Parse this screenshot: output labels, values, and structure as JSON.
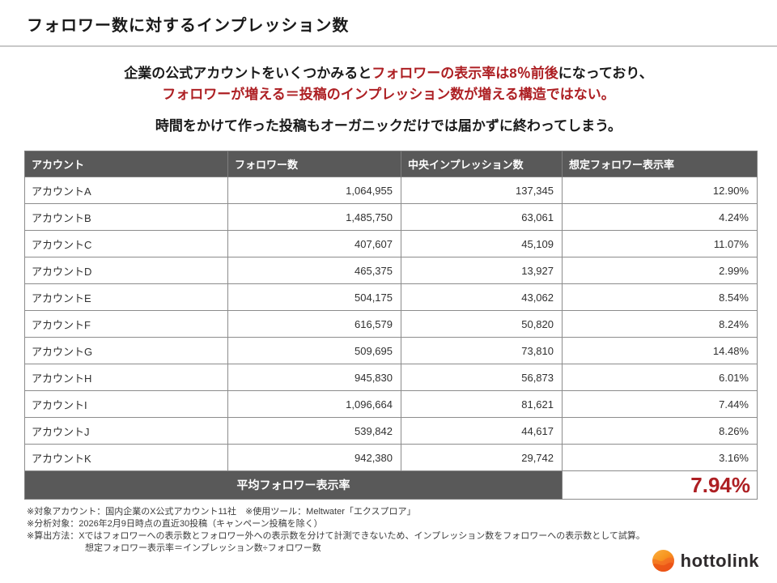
{
  "header": {
    "title": "フォロワー数に対するインプレッション数"
  },
  "lead": {
    "line1_black1": "企業の公式アカウントをいくつかみると",
    "line1_red": "フォロワーの表示率は8％前後",
    "line1_black2": "になっており、",
    "line2_red": "フォロワーが増える＝投稿のインプレッション数が増える構造ではない。",
    "line3": "時間をかけて作った投稿もオーガニックだけでは届かずに終わってしまう。"
  },
  "colors": {
    "accent_red": "#ad1f23",
    "header_gray": "#595959",
    "border_gray": "#8c8c8c"
  },
  "table": {
    "columns": [
      "アカウント",
      "フォロワー数",
      "中央インプレッション数",
      "想定フォロワー表示率"
    ],
    "rows": [
      {
        "account": "アカウントA",
        "followers": "1,064,955",
        "impressions": "137,345",
        "rate": "12.90%"
      },
      {
        "account": "アカウントB",
        "followers": "1,485,750",
        "impressions": "63,061",
        "rate": "4.24%"
      },
      {
        "account": "アカウントC",
        "followers": "407,607",
        "impressions": "45,109",
        "rate": "11.07%"
      },
      {
        "account": "アカウントD",
        "followers": "465,375",
        "impressions": "13,927",
        "rate": "2.99%"
      },
      {
        "account": "アカウントE",
        "followers": "504,175",
        "impressions": "43,062",
        "rate": "8.54%"
      },
      {
        "account": "アカウントF",
        "followers": "616,579",
        "impressions": "50,820",
        "rate": "8.24%"
      },
      {
        "account": "アカウントG",
        "followers": "509,695",
        "impressions": "73,810",
        "rate": "14.48%"
      },
      {
        "account": "アカウントH",
        "followers": "945,830",
        "impressions": "56,873",
        "rate": "6.01%"
      },
      {
        "account": "アカウントI",
        "followers": "1,096,664",
        "impressions": "81,621",
        "rate": "7.44%"
      },
      {
        "account": "アカウントJ",
        "followers": "539,842",
        "impressions": "44,617",
        "rate": "8.26%"
      },
      {
        "account": "アカウントK",
        "followers": "942,380",
        "impressions": "29,742",
        "rate": "3.16%"
      }
    ],
    "footer": {
      "label": "平均フォロワー表示率",
      "value": "7.94%"
    }
  },
  "notes": [
    {
      "text": "※対象アカウント：国内企業のX公式アカウント11社　※使用ツール：Meltwater「エクスプロア」",
      "indent": false
    },
    {
      "text": "※分析対象：2026年2月9日時点の直近30投稿（キャンペーン投稿を除く）",
      "indent": false
    },
    {
      "text": "※算出方法：Xではフォロワーへの表示数とフォロワー外への表示数を分けて計測できないため、インプレッション数をフォロワーへの表示数として試算。",
      "indent": false
    },
    {
      "text": "想定フォロワー表示率＝インプレッション数÷フォロワー数",
      "indent": true
    }
  ],
  "logo": {
    "text": "hottolink"
  }
}
